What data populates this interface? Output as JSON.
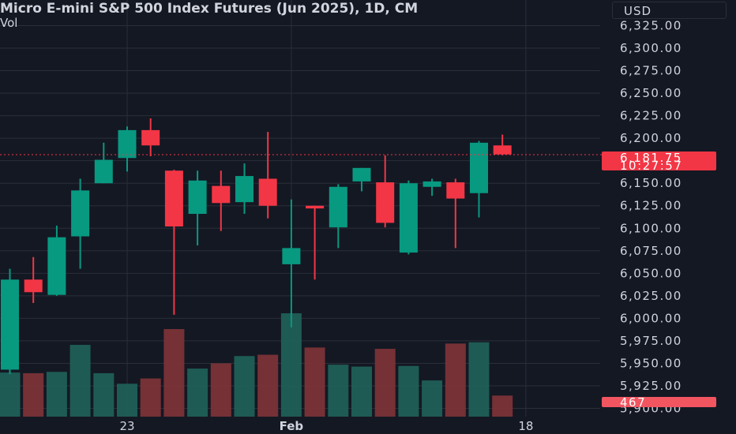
{
  "title": {
    "symbol": "Micro E-mini S&P 500 Index Futures (Jun 2025), 1D, CM",
    "volume_label": "Vol"
  },
  "currency_button": "USD",
  "price_labels": {
    "last_price": "6,181.75",
    "countdown": "10:27:57",
    "last_volume": "467"
  },
  "colors": {
    "background": "#141823",
    "up": "#089981",
    "down": "#f23645",
    "grid": "#2a2e39",
    "text": "#d1d4dc"
  },
  "chart_data": {
    "type": "candlestick",
    "y_axis": {
      "range": [
        5895,
        6335
      ],
      "ticks": [
        "6,325.00",
        "6,300.00",
        "6,275.00",
        "6,250.00",
        "6,225.00",
        "6,200.00",
        "6,175.00",
        "6,150.00",
        "6,125.00",
        "6,100.00",
        "6,075.00",
        "6,050.00",
        "6,025.00",
        "6,000.00",
        "5,975.00",
        "5,950.00",
        "5,925.00",
        "5,900.00"
      ]
    },
    "x_axis": {
      "ticks": [
        {
          "label": "23",
          "index": 5
        },
        {
          "label": "Feb",
          "index": 12
        },
        {
          "label": "18",
          "index": 22
        }
      ]
    },
    "last_price": 6181.75,
    "candles": [
      {
        "o": 5943,
        "h": 6055,
        "l": 5938,
        "c": 6043
      },
      {
        "o": 6043,
        "h": 6068,
        "l": 6017,
        "c": 6029
      },
      {
        "o": 6026,
        "h": 6103,
        "l": 6025,
        "c": 6090
      },
      {
        "o": 6091,
        "h": 6155,
        "l": 6055,
        "c": 6142
      },
      {
        "o": 6150,
        "h": 6195,
        "l": 6150,
        "c": 6176
      },
      {
        "o": 6178,
        "h": 6213,
        "l": 6163,
        "c": 6209
      },
      {
        "o": 6209,
        "h": 6222,
        "l": 6180,
        "c": 6192
      },
      {
        "o": 6164,
        "h": 6165,
        "l": 6004,
        "c": 6102
      },
      {
        "o": 6116,
        "h": 6164,
        "l": 6081,
        "c": 6153
      },
      {
        "o": 6147,
        "h": 6164,
        "l": 6097,
        "c": 6128
      },
      {
        "o": 6129,
        "h": 6172,
        "l": 6116,
        "c": 6158
      },
      {
        "o": 6155,
        "h": 6207,
        "l": 6111,
        "c": 6125
      },
      {
        "o": 6060,
        "h": 6132,
        "l": 5990,
        "c": 6078
      },
      {
        "o": 6125,
        "h": 6125,
        "l": 6043,
        "c": 6122
      },
      {
        "o": 6101,
        "h": 6149,
        "l": 6078,
        "c": 6146
      },
      {
        "o": 6152,
        "h": 6167,
        "l": 6141,
        "c": 6167
      },
      {
        "o": 6151,
        "h": 6181,
        "l": 6101,
        "c": 6106
      },
      {
        "o": 6073,
        "h": 6153,
        "l": 6071,
        "c": 6150
      },
      {
        "o": 6146,
        "h": 6155,
        "l": 6136,
        "c": 6152
      },
      {
        "o": 6151,
        "h": 6155,
        "l": 6078,
        "c": 6133
      },
      {
        "o": 6139,
        "h": 6197,
        "l": 6112,
        "c": 6195
      },
      {
        "o": 6192,
        "h": 6204,
        "l": 6181,
        "c": 6182
      }
    ],
    "volume": [
      67,
      66,
      68,
      109,
      66,
      50,
      58,
      133,
      73,
      81,
      92,
      94,
      157,
      105,
      79,
      76,
      103,
      77,
      55,
      111,
      113,
      32
    ]
  }
}
